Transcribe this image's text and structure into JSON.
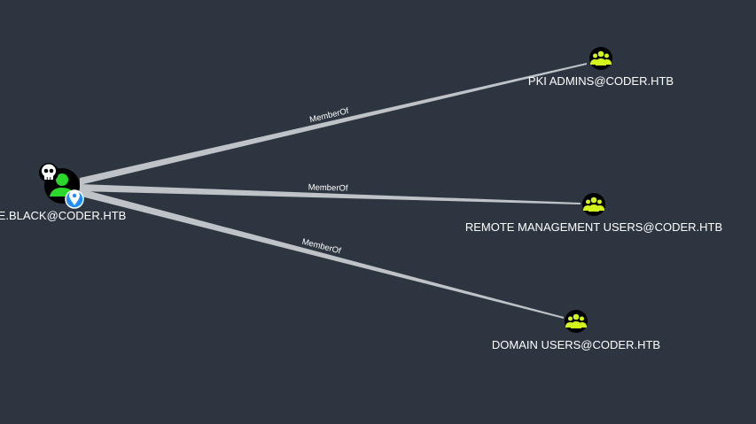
{
  "colors": {
    "background": "#2d3640",
    "edge": "#bfc3c7",
    "group_icon": "#d4f51c",
    "user_icon": "#2bd72b",
    "node_fill": "#000000",
    "label": "#ffffff",
    "pin_badge": "#1f8fff"
  },
  "graph": {
    "source": {
      "label": "E.BLACK@CODER.HTB",
      "type": "user",
      "icon": "user-icon",
      "badges": [
        "skull-icon",
        "location-pin-icon"
      ]
    },
    "targets": [
      {
        "label": "PKI ADMINS@CODER.HTB",
        "type": "group",
        "icon": "group-icon"
      },
      {
        "label": "REMOTE MANAGEMENT USERS@CODER.HTB",
        "type": "group",
        "icon": "group-icon"
      },
      {
        "label": "DOMAIN USERS@CODER.HTB",
        "type": "group",
        "icon": "group-icon"
      }
    ],
    "edges": [
      {
        "from": "E.BLACK@CODER.HTB",
        "to": "PKI ADMINS@CODER.HTB",
        "label": "MemberOf"
      },
      {
        "from": "E.BLACK@CODER.HTB",
        "to": "REMOTE MANAGEMENT USERS@CODER.HTB",
        "label": "MemberOf"
      },
      {
        "from": "E.BLACK@CODER.HTB",
        "to": "DOMAIN USERS@CODER.HTB",
        "label": "MemberOf"
      }
    ]
  }
}
